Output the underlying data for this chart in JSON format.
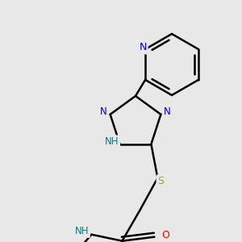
{
  "background_color": "#e8e8e8",
  "bond_color": "#000000",
  "bond_width": 1.8,
  "atom_colors": {
    "N": "#0000cc",
    "O": "#ff0000",
    "S": "#aaaa00",
    "NH": "#008080",
    "C": "#000000"
  },
  "font_size": 8.5,
  "figsize": [
    3.0,
    3.0
  ],
  "dpi": 100,
  "bg": "#e8e8e8"
}
